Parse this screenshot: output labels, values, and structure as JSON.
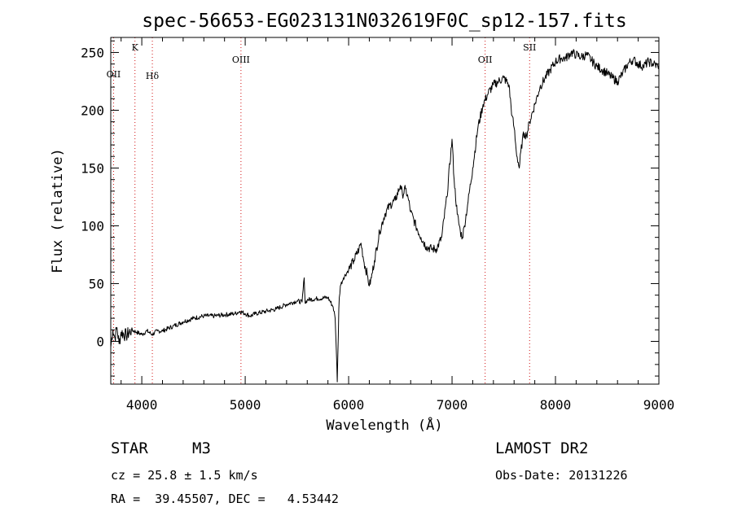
{
  "chart_data": {
    "type": "line",
    "title": "spec-56653-EG023131N032619F0C_sp12-157.fits",
    "xlabel": "Wavelength (Å)",
    "ylabel": "Flux (relative)",
    "xlim": [
      3700,
      9000
    ],
    "ylim": [
      -37,
      263
    ],
    "x_ticks": [
      4000,
      5000,
      6000,
      7000,
      8000,
      9000
    ],
    "y_ticks": [
      0,
      50,
      100,
      150,
      200,
      250
    ],
    "series": [
      {
        "x": [
          3700,
          3720,
          3740,
          3760,
          3780,
          3800,
          3850,
          3900,
          3950,
          4000,
          4050,
          4100,
          4150,
          4200,
          4300,
          4400,
          4500,
          4600,
          4700,
          4800,
          4900,
          4950,
          5000,
          5050,
          5100,
          5200,
          5300,
          5400,
          5500,
          5550,
          5570,
          5580,
          5600,
          5700,
          5800,
          5850,
          5870,
          5880,
          5890,
          5895,
          5900,
          5905,
          5910,
          5920,
          5950,
          6000,
          6050,
          6100,
          6120,
          6150,
          6180,
          6200,
          6220,
          6250,
          6300,
          6350,
          6400,
          6450,
          6500,
          6520,
          6550,
          6580,
          6600,
          6650,
          6700,
          6750,
          6800,
          6850,
          6900,
          6950,
          7000,
          7020,
          7050,
          7080,
          7100,
          7120,
          7150,
          7200,
          7250,
          7300,
          7350,
          7400,
          7450,
          7500,
          7550,
          7580,
          7600,
          7620,
          7650,
          7680,
          7700,
          7720,
          7750,
          7800,
          7850,
          7900,
          7950,
          8000,
          8050,
          8100,
          8150,
          8200,
          8250,
          8300,
          8350,
          8400,
          8450,
          8500,
          8550,
          8600,
          8650,
          8700,
          8750,
          8800,
          8850,
          8900,
          8950,
          8990,
          9000
        ],
        "y": [
          -5,
          10,
          3,
          12,
          -2,
          8,
          5,
          10,
          8,
          6,
          9,
          6,
          9,
          9,
          13,
          17,
          20,
          22,
          22,
          23,
          24,
          26,
          24,
          22,
          24,
          26,
          28,
          32,
          35,
          34,
          55,
          33,
          36,
          37,
          38,
          30,
          20,
          -5,
          -35,
          -15,
          5,
          28,
          38,
          48,
          55,
          62,
          70,
          80,
          85,
          68,
          58,
          48,
          55,
          70,
          95,
          110,
          118,
          122,
          135,
          127,
          132,
          122,
          112,
          100,
          90,
          82,
          80,
          80,
          90,
          125,
          175,
          140,
          110,
          95,
          90,
          100,
          118,
          150,
          185,
          205,
          215,
          222,
          225,
          228,
          222,
          195,
          185,
          165,
          150,
          175,
          180,
          178,
          190,
          205,
          220,
          228,
          235,
          242,
          245,
          245,
          250,
          248,
          246,
          248,
          243,
          238,
          235,
          232,
          228,
          225,
          232,
          240,
          244,
          240,
          238,
          242,
          240,
          238,
          240
        ]
      }
    ],
    "lines": [
      {
        "label": "OII",
        "x": 3727
      },
      {
        "label": "K",
        "x": 3934
      },
      {
        "label": "Hδ",
        "x": 4102
      },
      {
        "label": "OIII",
        "x": 4959
      },
      {
        "label": "OII",
        "x": 7320
      },
      {
        "label": "SII",
        "x": 7750
      }
    ]
  },
  "footer": {
    "cls": "STAR",
    "subclass": "M3",
    "cz": "cz = 25.8 ± 1.5 km/s",
    "coords": "RA =  39.45507, DEC =   4.53442",
    "survey": "LAMOST DR2",
    "obsdate": "Obs-Date: 20131226"
  },
  "colors": {
    "spectrum": "#000000",
    "line_marker": "#d01010",
    "axis": "#000000"
  }
}
